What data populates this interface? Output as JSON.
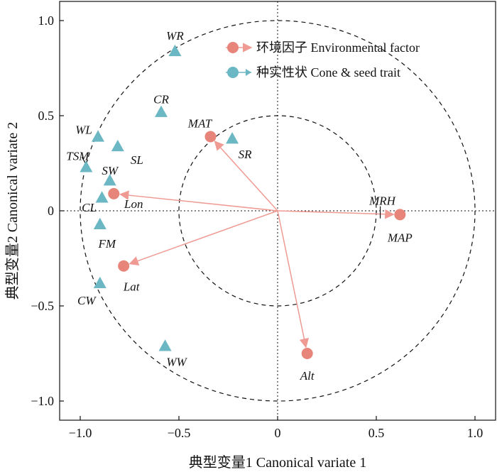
{
  "chart_data": {
    "type": "scatter",
    "xlabel": "典型变量1 Canonical variate 1",
    "ylabel": "典型变量2 Canonical variate 2",
    "xlim": [
      -1.1,
      1.1
    ],
    "ylim": [
      -1.1,
      1.1
    ],
    "x_ticks": [
      -1.0,
      -0.5,
      0,
      0.5,
      1.0
    ],
    "y_ticks": [
      -1.0,
      -0.5,
      0,
      0.5,
      1.0
    ],
    "x_tick_labels": [
      "−1.0",
      "−0.5",
      "0",
      "0.5",
      "1.0"
    ],
    "y_tick_labels": [
      "−1.0",
      "−0.5",
      "0",
      "0.5",
      "1.0"
    ],
    "grid": false,
    "reference_lines": "dotted lines at x = 0 and y = 0",
    "circles": [
      {
        "radius": 0.5,
        "style": "dashed"
      },
      {
        "radius": 1.0,
        "style": "dashed"
      }
    ],
    "legend": {
      "placement": "top-right",
      "entries": [
        {
          "label": "环境因子 Environmental factor",
          "marker": "circle",
          "color": "#E8857A"
        },
        {
          "label": "种实性状 Cone & seed trait",
          "marker": "circle",
          "color": "#6BB7C4"
        }
      ]
    },
    "series": [
      {
        "name": "环境因子 Environmental factor",
        "marker": "circle",
        "color": "#E8857A",
        "arrow_color": "#EF9A93",
        "points": [
          {
            "label": "MAT",
            "x": -0.34,
            "y": 0.39
          },
          {
            "label": "Lon",
            "x": -0.83,
            "y": 0.09
          },
          {
            "label": "Lat",
            "x": -0.78,
            "y": -0.29
          },
          {
            "label": "MAP",
            "x": 0.62,
            "y": -0.02
          },
          {
            "label": "MRH",
            "x": 0.52,
            "y": -0.01
          },
          {
            "label": "Alt",
            "x": 0.15,
            "y": -0.75
          }
        ]
      },
      {
        "name": "种实性状 Cone & seed trait",
        "marker": "triangle",
        "color": "#6BB7C4",
        "points": [
          {
            "label": "WR",
            "x": -0.52,
            "y": 0.84
          },
          {
            "label": "CR",
            "x": -0.59,
            "y": 0.52
          },
          {
            "label": "WL",
            "x": -0.91,
            "y": 0.39
          },
          {
            "label": "SL",
            "x": -0.81,
            "y": 0.34
          },
          {
            "label": "TSM",
            "x": -0.97,
            "y": 0.23
          },
          {
            "label": "SW",
            "x": -0.85,
            "y": 0.16
          },
          {
            "label": "CL",
            "x": -0.89,
            "y": 0.07
          },
          {
            "label": "SR",
            "x": -0.23,
            "y": 0.38
          },
          {
            "label": "FM",
            "x": -0.9,
            "y": -0.07
          },
          {
            "label": "CW",
            "x": -0.9,
            "y": -0.38
          },
          {
            "label": "WW",
            "x": -0.57,
            "y": -0.71
          }
        ]
      }
    ]
  }
}
